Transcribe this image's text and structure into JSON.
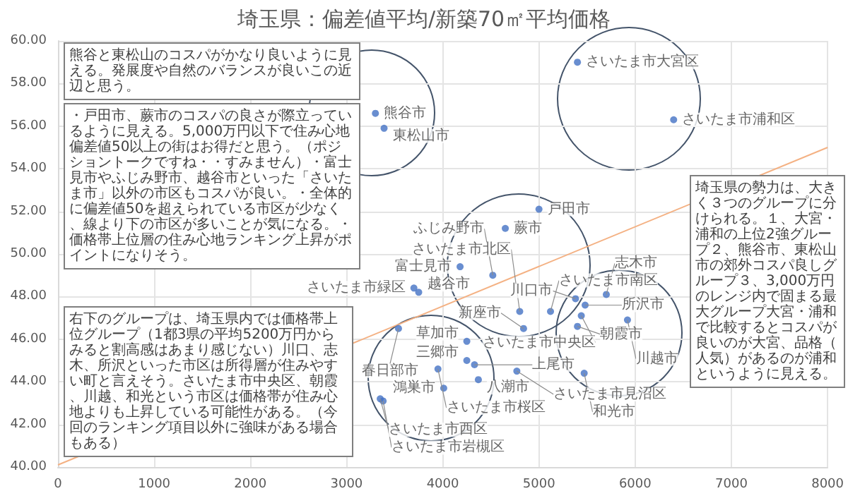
{
  "chart_data": {
    "type": "scatter",
    "title": "埼玉県：偏差値平均/新築70㎡平均価格",
    "xlim": [
      0,
      8000
    ],
    "xticks": [
      0,
      1000,
      2000,
      3000,
      4000,
      5000,
      6000,
      7000,
      8000
    ],
    "ylim": [
      40,
      60
    ],
    "yticks": [
      {
        "value": 40,
        "label": "40.00"
      },
      {
        "value": 42,
        "label": "42.00"
      },
      {
        "value": 44,
        "label": "44.00"
      },
      {
        "value": 46,
        "label": "46.00"
      },
      {
        "value": 48,
        "label": "48.00"
      },
      {
        "value": 50,
        "label": "50.00"
      },
      {
        "value": 52,
        "label": "52.00"
      },
      {
        "value": 54,
        "label": "54.00"
      },
      {
        "value": 56,
        "label": "56.00"
      },
      {
        "value": 58,
        "label": "58.00"
      },
      {
        "value": 60,
        "label": "60.00"
      }
    ],
    "grid": true,
    "marker": "circle",
    "series": [
      {
        "color": "#4472c4",
        "x": [
          3300,
          3390,
          5400,
          6400,
          5000,
          4650,
          4180,
          4520,
          3700,
          3750,
          4800,
          4840,
          5120,
          5380,
          5480,
          5700,
          5440,
          5400,
          5920,
          5470,
          3540,
          4250,
          4250,
          4330,
          4770,
          4370,
          3950,
          4010,
          3350,
          3380
        ],
        "values": [
          56.6,
          55.9,
          59.0,
          56.3,
          52.1,
          51.2,
          49.4,
          49.0,
          48.4,
          48.2,
          47.3,
          46.5,
          47.3,
          47.9,
          47.6,
          48.1,
          47.1,
          46.6,
          46.9,
          44.4,
          46.5,
          45.9,
          45.0,
          44.8,
          44.5,
          44.1,
          44.6,
          43.7,
          43.2,
          43.1
        ]
      },
      {
        "type": "line",
        "color": "#f4b183",
        "marker": "none",
        "line_style": "solid",
        "x": [
          0,
          8000
        ],
        "values": [
          40.1,
          55.0
        ]
      }
    ],
    "annotations": [
      "熊谷と東松山のコスパがかなり良いように見える。発展度や自然のバランスが良いこの近辺と思う。",
      "・戸田市、蕨市のコスパの良さが際立っているように見える。5,000万円以下で住み心地偏差値50以上の街はお得だと思う。（ポジショントークですね・・すみません）・富士見市やふじみ野市、越谷市といった「さいたま市」以外の市区もコスパが良い。・全体的に偏差値50を超えられている市区が少なく、線より下の市区が多いことが気になる。・価格帯上位層の住み心地ランキング上昇がポイントになりそう。",
      "埼玉県の勢力は、大きく３つのグループに分けられる。１、大宮・浦和の上位2強グループ２、熊谷市、東松山市の郊外コスパ良しグループ３、3,000万円のレンジ内で固まる最大グループ大宮・浦和で比較するとコスパが良いのが大宮、品格（人気）があるのが浦和というように見える。",
      "右下のグループは、埼玉県内では価格帯上位グループ（1都3県の平均5200万円からみると割高感はあまり感じない）川口、志木、所沢といった市区は所得層が住みやすい町と言えそう。さいたま市中央区、朝霞、川越、和光という市区は価格帯が住み心地よりも上昇している可能性がある。（今回のランキング項目以外に強味がある場合もある）",
      {
        "text": "熊谷市",
        "x": 3300,
        "y": 56.6
      },
      {
        "text": "東松山市",
        "x": 3390,
        "y": 55.9
      },
      {
        "text": "さいたま市大宮区",
        "x": 5400,
        "y": 59.0
      },
      {
        "text": "さいたま市浦和区",
        "x": 6400,
        "y": 56.3
      },
      {
        "text": "戸田市",
        "x": 5000,
        "y": 52.1
      },
      {
        "text": "蕨市",
        "x": 4650,
        "y": 51.2
      },
      {
        "text": "富士見市",
        "x": 4180,
        "y": 49.4
      },
      {
        "text": "ふじみ野市",
        "x": 4520,
        "y": 49.0
      },
      {
        "text": "さいたま市緑区",
        "x": 3700,
        "y": 48.4
      },
      {
        "text": "越谷市",
        "x": 3750,
        "y": 48.2
      },
      {
        "text": "さいたま市北区",
        "x": 4800,
        "y": 47.3
      },
      {
        "text": "新座市",
        "x": 4840,
        "y": 46.5
      },
      {
        "text": "さいたま市南区",
        "x": 5120,
        "y": 47.3
      },
      {
        "text": "川口市",
        "x": 5380,
        "y": 47.9
      },
      {
        "text": "所沢市",
        "x": 5480,
        "y": 47.6
      },
      {
        "text": "志木市",
        "x": 5700,
        "y": 48.1
      },
      {
        "text": "さいたま市中央区",
        "x": 5440,
        "y": 47.1
      },
      {
        "text": "朝霞市",
        "x": 5400,
        "y": 46.6
      },
      {
        "text": "川越市",
        "x": 5920,
        "y": 46.9
      },
      {
        "text": "和光市",
        "x": 5470,
        "y": 44.4
      },
      {
        "text": "春日部市",
        "x": 3540,
        "y": 46.5
      },
      {
        "text": "草加市",
        "x": 4250,
        "y": 45.9
      },
      {
        "text": "三郷市",
        "x": 4250,
        "y": 45.0
      },
      {
        "text": "上尾市",
        "x": 4330,
        "y": 44.8
      },
      {
        "text": "さいたま市見沼区",
        "x": 4770,
        "y": 44.5
      },
      {
        "text": "八潮市",
        "x": 4370,
        "y": 44.1
      },
      {
        "text": "さいたま市桜区",
        "x": 3950,
        "y": 44.6
      },
      {
        "text": "鴻巣市",
        "x": 4010,
        "y": 43.7
      },
      {
        "text": "さいたま市西区",
        "x": 3350,
        "y": 43.2
      },
      {
        "text": "さいたま市岩槻区",
        "x": 3380,
        "y": 43.1
      }
    ]
  }
}
